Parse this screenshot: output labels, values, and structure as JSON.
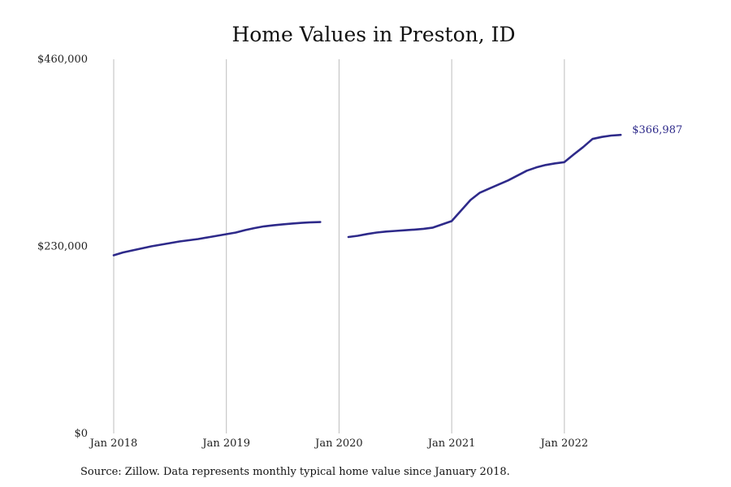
{
  "chart_data": {
    "type": "line",
    "title": "Home Values in Preston, ID",
    "xlabel": "",
    "ylabel": "",
    "ylim": [
      0,
      460000
    ],
    "yticks": [
      0,
      230000,
      460000
    ],
    "ytick_labels": [
      "$0",
      "$230,000",
      "$460,000"
    ],
    "xticks": [
      "2018-01",
      "2019-01",
      "2020-01",
      "2021-01",
      "2022-01"
    ],
    "xtick_labels": [
      "Jan 2018",
      "Jan 2019",
      "Jan 2020",
      "Jan 2021",
      "Jan 2022"
    ],
    "xlim": [
      "2018-01",
      "2022-12"
    ],
    "grid": "vertical lines at x ticks",
    "legend": "none",
    "end_label": "$366,987",
    "series": [
      {
        "color": "#2e2a8a",
        "segments": [
          [
            {
              "x": "2018-01",
              "y": 219000
            },
            {
              "x": "2018-02",
              "y": 222500
            },
            {
              "x": "2018-03",
              "y": 225000
            },
            {
              "x": "2018-04",
              "y": 227500
            },
            {
              "x": "2018-05",
              "y": 230000
            },
            {
              "x": "2018-06",
              "y": 232000
            },
            {
              "x": "2018-07",
              "y": 234000
            },
            {
              "x": "2018-08",
              "y": 236000
            },
            {
              "x": "2018-09",
              "y": 237500
            },
            {
              "x": "2018-10",
              "y": 239000
            },
            {
              "x": "2018-11",
              "y": 241000
            },
            {
              "x": "2018-12",
              "y": 243000
            },
            {
              "x": "2019-01",
              "y": 245000
            },
            {
              "x": "2019-02",
              "y": 247000
            },
            {
              "x": "2019-03",
              "y": 250000
            },
            {
              "x": "2019-04",
              "y": 252500
            },
            {
              "x": "2019-05",
              "y": 254500
            },
            {
              "x": "2019-06",
              "y": 255800
            },
            {
              "x": "2019-07",
              "y": 257000
            },
            {
              "x": "2019-08",
              "y": 258000
            },
            {
              "x": "2019-09",
              "y": 258800
            },
            {
              "x": "2019-10",
              "y": 259500
            },
            {
              "x": "2019-11",
              "y": 259800
            }
          ],
          [
            {
              "x": "2020-02",
              "y": 241500
            },
            {
              "x": "2020-03",
              "y": 243000
            },
            {
              "x": "2020-04",
              "y": 245200
            },
            {
              "x": "2020-05",
              "y": 247000
            },
            {
              "x": "2020-06",
              "y": 248200
            },
            {
              "x": "2020-07",
              "y": 249000
            },
            {
              "x": "2020-08",
              "y": 249800
            },
            {
              "x": "2020-09",
              "y": 250600
            },
            {
              "x": "2020-10",
              "y": 251600
            },
            {
              "x": "2020-11",
              "y": 253000
            },
            {
              "x": "2020-12",
              "y": 257000
            },
            {
              "x": "2021-01",
              "y": 261000
            },
            {
              "x": "2021-02",
              "y": 274000
            },
            {
              "x": "2021-03",
              "y": 287000
            },
            {
              "x": "2021-04",
              "y": 296000
            },
            {
              "x": "2021-05",
              "y": 301000
            },
            {
              "x": "2021-06",
              "y": 306000
            },
            {
              "x": "2021-07",
              "y": 311000
            },
            {
              "x": "2021-08",
              "y": 317000
            },
            {
              "x": "2021-09",
              "y": 323000
            },
            {
              "x": "2021-10",
              "y": 327000
            },
            {
              "x": "2021-11",
              "y": 330000
            },
            {
              "x": "2021-12",
              "y": 332000
            },
            {
              "x": "2022-01",
              "y": 333500
            },
            {
              "x": "2022-02",
              "y": 343000
            },
            {
              "x": "2022-03",
              "y": 352000
            },
            {
              "x": "2022-04",
              "y": 362000
            },
            {
              "x": "2022-05",
              "y": 364500
            },
            {
              "x": "2022-06",
              "y": 366200
            },
            {
              "x": "2022-07",
              "y": 366987
            }
          ]
        ]
      }
    ]
  },
  "footer": {
    "source": "Source: Zillow. Data represents monthly typical home value since January 2018."
  }
}
